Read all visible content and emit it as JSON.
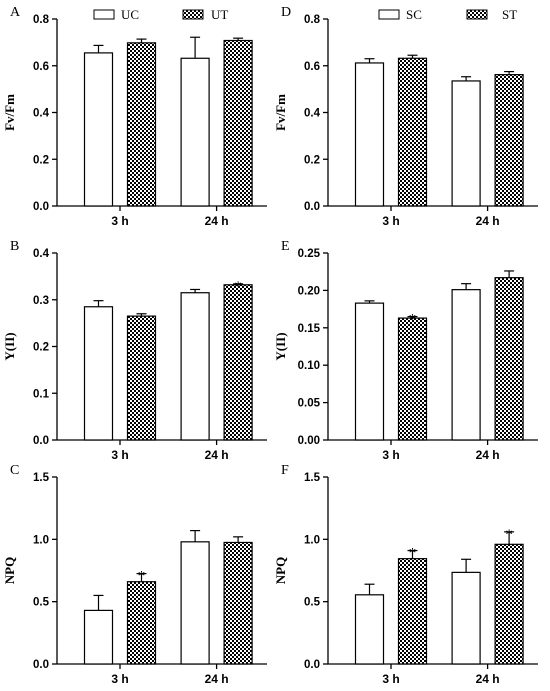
{
  "legends": {
    "left": {
      "control": "UC",
      "treatment": "UT"
    },
    "right": {
      "control": "SC",
      "treatment": "ST"
    }
  },
  "chart_data": [
    {
      "panel": "A",
      "type": "bar",
      "ylabel": "Fv/Fm",
      "categories": [
        "3 h",
        "24 h"
      ],
      "ylim": [
        0,
        0.8
      ],
      "yticks": [
        "0.0",
        "0.2",
        "0.4",
        "0.6",
        "0.8"
      ],
      "series": [
        {
          "name": "UC",
          "values": [
            0.655,
            0.632
          ],
          "errors": [
            0.032,
            0.09
          ],
          "sig": [
            false,
            false
          ]
        },
        {
          "name": "UT",
          "values": [
            0.698,
            0.708
          ],
          "errors": [
            0.016,
            0.01
          ],
          "sig": [
            false,
            false
          ]
        }
      ]
    },
    {
      "panel": "B",
      "type": "bar",
      "ylabel": "Y(II)",
      "categories": [
        "3 h",
        "24 h"
      ],
      "ylim": [
        0,
        0.4
      ],
      "yticks": [
        "0.0",
        "0.1",
        "0.2",
        "0.3",
        "0.4"
      ],
      "series": [
        {
          "name": "UC",
          "values": [
            0.285,
            0.315
          ],
          "errors": [
            0.013,
            0.007
          ],
          "sig": [
            false,
            false
          ]
        },
        {
          "name": "UT",
          "values": [
            0.265,
            0.332
          ],
          "errors": [
            0.005,
            0.002
          ],
          "sig": [
            false,
            true
          ]
        }
      ]
    },
    {
      "panel": "C",
      "type": "bar",
      "ylabel": "NPQ",
      "categories": [
        "3 h",
        "24 h"
      ],
      "ylim": [
        0,
        1.5
      ],
      "yticks": [
        "0.0",
        "0.5",
        "1.0",
        "1.5"
      ],
      "series": [
        {
          "name": "UC",
          "values": [
            0.43,
            0.98
          ],
          "errors": [
            0.12,
            0.09
          ],
          "sig": [
            false,
            false
          ]
        },
        {
          "name": "UT",
          "values": [
            0.66,
            0.975
          ],
          "errors": [
            0.065,
            0.045
          ],
          "sig": [
            true,
            false
          ]
        }
      ]
    },
    {
      "panel": "D",
      "type": "bar",
      "ylabel": "Fv/Fm",
      "categories": [
        "3 h",
        "24 h"
      ],
      "ylim": [
        0,
        0.8
      ],
      "yticks": [
        "0.0",
        "0.2",
        "0.4",
        "0.6",
        "0.8"
      ],
      "series": [
        {
          "name": "SC",
          "values": [
            0.612,
            0.535
          ],
          "errors": [
            0.018,
            0.018
          ],
          "sig": [
            false,
            false
          ]
        },
        {
          "name": "ST",
          "values": [
            0.632,
            0.562
          ],
          "errors": [
            0.013,
            0.013
          ],
          "sig": [
            false,
            false
          ]
        }
      ]
    },
    {
      "panel": "E",
      "type": "bar",
      "ylabel": "Y(II)",
      "categories": [
        "3 h",
        "24 h"
      ],
      "ylim": [
        0,
        0.25
      ],
      "yticks": [
        "0.00",
        "0.05",
        "0.10",
        "0.15",
        "0.20",
        "0.25"
      ],
      "series": [
        {
          "name": "SC",
          "values": [
            0.183,
            0.201
          ],
          "errors": [
            0.003,
            0.008
          ],
          "sig": [
            false,
            false
          ]
        },
        {
          "name": "ST",
          "values": [
            0.163,
            0.217
          ],
          "errors": [
            0.002,
            0.009
          ],
          "sig": [
            true,
            false
          ]
        }
      ]
    },
    {
      "panel": "F",
      "type": "bar",
      "ylabel": "NPQ",
      "categories": [
        "3 h",
        "24 h"
      ],
      "ylim": [
        0,
        1.5
      ],
      "yticks": [
        "0.0",
        "0.5",
        "1.0",
        "1.5"
      ],
      "series": [
        {
          "name": "SC",
          "values": [
            0.555,
            0.735
          ],
          "errors": [
            0.085,
            0.105
          ],
          "sig": [
            false,
            false
          ]
        },
        {
          "name": "ST",
          "values": [
            0.845,
            0.96
          ],
          "errors": [
            0.065,
            0.1
          ],
          "sig": [
            true,
            true
          ]
        }
      ]
    }
  ]
}
